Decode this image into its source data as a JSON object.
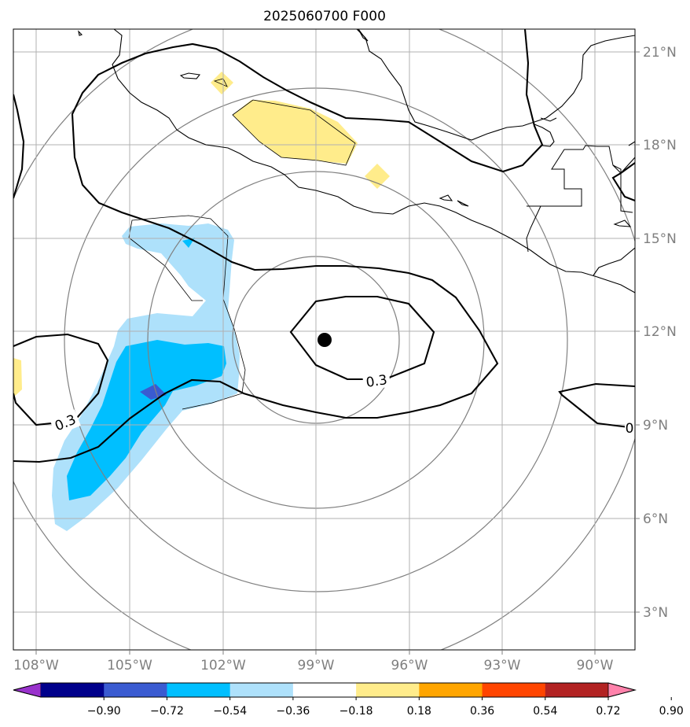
{
  "title": "2025060700 F000",
  "map": {
    "lon_labels": [
      "108°W",
      "105°W",
      "102°W",
      "99°W",
      "96°W",
      "93°W",
      "90°W"
    ],
    "lat_labels": [
      "21°N",
      "18°N",
      "15°N",
      "12°N",
      "9°N",
      "6°N",
      "3°N"
    ],
    "center_marker": "storm-center",
    "contour_labels": [
      "0.3",
      "0.3",
      "0"
    ]
  },
  "colorbar": {
    "ticks": [
      "−0.90",
      "−0.72",
      "−0.54",
      "−0.36",
      "−0.18",
      "0.18",
      "0.36",
      "0.54",
      "0.72",
      "0.90"
    ],
    "colors": [
      "#9932cc",
      "#00008b",
      "#3a5bd1",
      "#00bfff",
      "#aee1fb",
      "#ffffff",
      "#ffec8b",
      "#ffa500",
      "#ff4500",
      "#b22222",
      "#ff82ab"
    ]
  }
}
